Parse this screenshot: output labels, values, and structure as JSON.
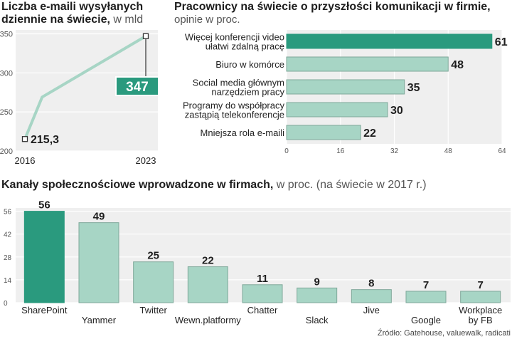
{
  "colors": {
    "accent": "#2a9a7e",
    "bar": "#a7d5c5",
    "bar_stroke": "#7fa89a",
    "panel": "#efefef",
    "grid": "#ffffff",
    "axis_text": "#555555",
    "value_text": "#1e1e1e",
    "callout_text": "#ffffff"
  },
  "chart_data": [
    {
      "type": "line",
      "title_line1": "Liczba e-maili wysyłanych",
      "title_line2": "dziennie na świecie,",
      "unit": "w mld",
      "x": [
        2016,
        2017,
        2023
      ],
      "y": [
        215.3,
        269,
        347
      ],
      "x_tick_labels": [
        "2016",
        "2023"
      ],
      "y_ticks": [
        200,
        250,
        300,
        350
      ],
      "y_tick_labels": [
        "200",
        "250",
        "300",
        "350"
      ],
      "ylim": [
        200,
        355
      ],
      "start_label": "215,3",
      "end_label": "347",
      "grid": true
    },
    {
      "type": "bar",
      "orientation": "horizontal",
      "title": "Pracownicy na świecie o przyszłości komunikacji w firmie,",
      "subtitle": "opinie w proc.",
      "categories": [
        [
          "Więcej konferencji video",
          "ułatwi zdalną pracę"
        ],
        [
          "Biuro w komórce"
        ],
        [
          "Social media głównym",
          "narzędziem pracy"
        ],
        [
          "Programy do współpracy",
          "zastąpią telekonferencje"
        ],
        [
          "Mniejsza rola e-maili"
        ]
      ],
      "values": [
        61,
        48,
        35,
        30,
        22
      ],
      "value_labels": [
        "61",
        "48",
        "35",
        "30",
        "22"
      ],
      "highlight_index": 0,
      "x_ticks": [
        0,
        16,
        32,
        48,
        64
      ],
      "x_tick_labels": [
        "0",
        "16",
        "32",
        "48",
        "64"
      ],
      "xlim": [
        0,
        64
      ],
      "grid": true
    },
    {
      "type": "bar",
      "title": "Kanały społecznościowe wprowadzone w firmach,",
      "subtitle": "w proc. (na świecie w 2017 r.)",
      "categories": [
        [
          "SharePoint"
        ],
        [
          "Yammer"
        ],
        [
          "Twitter"
        ],
        [
          "Wewn.platformy"
        ],
        [
          "Chatter"
        ],
        [
          "Slack"
        ],
        [
          "Jive"
        ],
        [
          "Google"
        ],
        [
          "Workplace",
          "by FB"
        ]
      ],
      "values": [
        56,
        49,
        25,
        22,
        11,
        9,
        8,
        7,
        7
      ],
      "value_labels": [
        "56",
        "49",
        "25",
        "22",
        "11",
        "9",
        "8",
        "7",
        "7"
      ],
      "highlight_index": 0,
      "y_ticks": [
        0,
        14,
        28,
        42,
        56
      ],
      "y_tick_labels": [
        "0",
        "14",
        "28",
        "42",
        "56"
      ],
      "ylim": [
        0,
        58
      ],
      "grid": true,
      "source": "Źródło: Gatehouse, valuewalk, radicati"
    }
  ]
}
